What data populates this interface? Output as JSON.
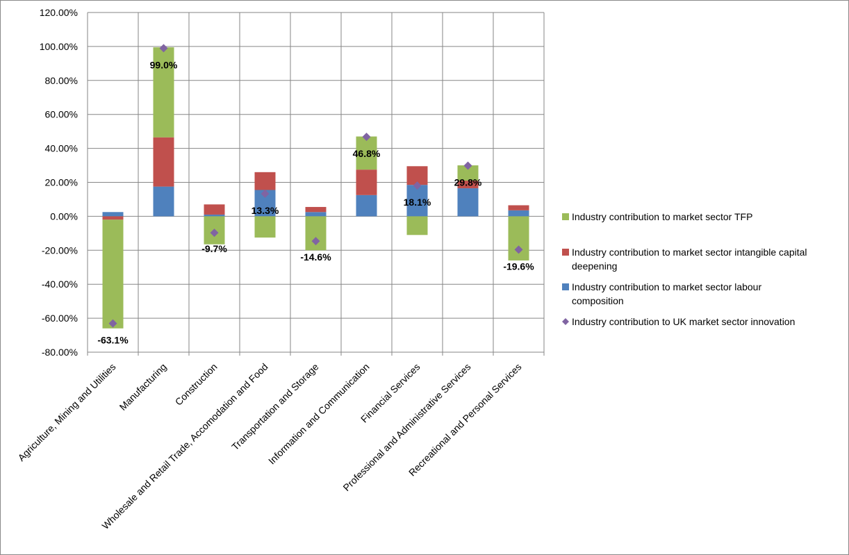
{
  "chart_data": {
    "type": "bar",
    "stacked": true,
    "title": "",
    "xlabel": "",
    "ylabel": "",
    "ylim": [
      -80,
      120
    ],
    "ytick_step": 20,
    "ytick_labels": [
      "120.00%",
      "100.00%",
      "80.00%",
      "60.00%",
      "40.00%",
      "20.00%",
      "0.00%",
      "-20.00%",
      "-40.00%",
      "-60.00%",
      "-80.00%"
    ],
    "grid": true,
    "legend_position": "right",
    "categories": [
      "Agriculture, Mining and Utilities",
      "Manufacturing",
      "Construction",
      "Wholesale and Retail Trade, Accomodation and Food",
      "Transportation and Storage",
      "Information and Communication",
      "Financial Services",
      "Professional and Administrative Services",
      "Recreational and Personal Services"
    ],
    "series": [
      {
        "name": "Industry contribution to market sector labour composition",
        "color": "#4f81bd",
        "values": [
          2.5,
          17.5,
          1.0,
          15.5,
          2.5,
          12.5,
          18.5,
          16.5,
          3.5
        ]
      },
      {
        "name": "Industry contribution to market sector intangible capital deepening",
        "color": "#c0504d",
        "values": [
          -2.0,
          29.0,
          6.0,
          10.5,
          3.0,
          15.0,
          11.0,
          4.5,
          3.0
        ]
      },
      {
        "name": "Industry contribution to market sector TFP",
        "color": "#9bbb59",
        "values": [
          -64.0,
          53.0,
          -16.5,
          -12.5,
          -20.0,
          19.5,
          -11.0,
          9.0,
          -26.0
        ]
      }
    ],
    "total": {
      "name": "Industry contribution to UK market sector innovation",
      "color": "#8064a2",
      "values": [
        -63.1,
        99.0,
        -9.7,
        13.3,
        -14.6,
        46.8,
        18.1,
        29.8,
        -19.6
      ],
      "labels": [
        "-63.1%",
        "99.0%",
        "-9.7%",
        "13.3%",
        "-14.6%",
        "46.8%",
        "18.1%",
        "29.8%",
        "-19.6%"
      ]
    },
    "legend": [
      {
        "lines": [
          "Industry contribution to market sector TFP"
        ],
        "color": "#9bbb59",
        "marker": "square"
      },
      {
        "lines": [
          "Industry contribution to market sector intangible capital",
          "deepening"
        ],
        "color": "#c0504d",
        "marker": "square"
      },
      {
        "lines": [
          "Industry contribution to market sector labour",
          "composition"
        ],
        "color": "#4f81bd",
        "marker": "square"
      },
      {
        "lines": [
          "Industry contribution to UK market sector innovation"
        ],
        "color": "#8064a2",
        "marker": "diamond"
      }
    ]
  }
}
